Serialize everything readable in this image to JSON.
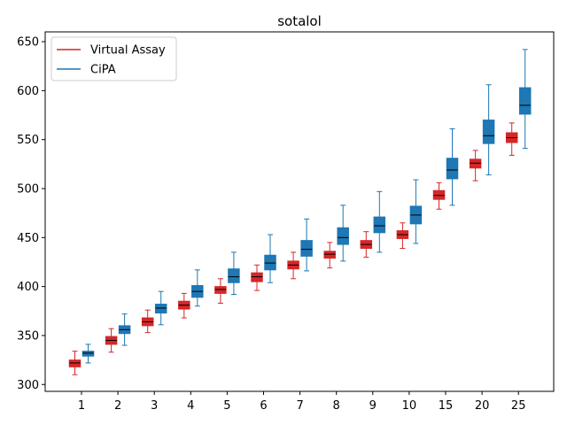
{
  "chart_data": {
    "type": "boxplot",
    "title": "sotalol",
    "xlabel": "",
    "ylabel": "",
    "categories": [
      "1",
      "2",
      "3",
      "4",
      "5",
      "6",
      "7",
      "8",
      "9",
      "10",
      "15",
      "20",
      "25"
    ],
    "ylim": [
      293,
      660
    ],
    "yticks": [
      300,
      350,
      400,
      450,
      500,
      550,
      600,
      650
    ],
    "grid": false,
    "legend_position": "top-left",
    "series": [
      {
        "name": "Virtual Assay",
        "color": "#d62728",
        "median_color": "#000000",
        "boxes": [
          {
            "whislo": 310,
            "q1": 318,
            "med": 322,
            "q3": 325,
            "whishi": 334
          },
          {
            "whislo": 333,
            "q1": 341,
            "med": 345,
            "q3": 349,
            "whishi": 357
          },
          {
            "whislo": 353,
            "q1": 360,
            "med": 364,
            "q3": 368,
            "whishi": 376
          },
          {
            "whislo": 368,
            "q1": 377,
            "med": 381,
            "q3": 385,
            "whishi": 393
          },
          {
            "whislo": 383,
            "q1": 393,
            "med": 397,
            "q3": 400,
            "whishi": 408
          },
          {
            "whislo": 396,
            "q1": 405,
            "med": 410,
            "q3": 414,
            "whishi": 422
          },
          {
            "whislo": 408,
            "q1": 418,
            "med": 422,
            "q3": 426,
            "whishi": 435
          },
          {
            "whislo": 419,
            "q1": 429,
            "med": 433,
            "q3": 436,
            "whishi": 445
          },
          {
            "whislo": 430,
            "q1": 439,
            "med": 443,
            "q3": 447,
            "whishi": 456
          },
          {
            "whislo": 439,
            "q1": 449,
            "med": 453,
            "q3": 457,
            "whishi": 465
          },
          {
            "whislo": 479,
            "q1": 489,
            "med": 493,
            "q3": 498,
            "whishi": 506
          },
          {
            "whislo": 508,
            "q1": 521,
            "med": 526,
            "q3": 530,
            "whishi": 539
          },
          {
            "whislo": 534,
            "q1": 547,
            "med": 552,
            "q3": 557,
            "whishi": 567
          }
        ]
      },
      {
        "name": "CiPA",
        "color": "#1f77b4",
        "median_color": "#000000",
        "boxes": [
          {
            "whislo": 322,
            "q1": 329,
            "med": 332,
            "q3": 334,
            "whishi": 341
          },
          {
            "whislo": 340,
            "q1": 352,
            "med": 356,
            "q3": 360,
            "whishi": 372
          },
          {
            "whislo": 361,
            "q1": 373,
            "med": 378,
            "q3": 382,
            "whishi": 395
          },
          {
            "whislo": 380,
            "q1": 389,
            "med": 395,
            "q3": 401,
            "whishi": 417
          },
          {
            "whislo": 392,
            "q1": 404,
            "med": 410,
            "q3": 418,
            "whishi": 435
          },
          {
            "whislo": 404,
            "q1": 417,
            "med": 424,
            "q3": 432,
            "whishi": 453
          },
          {
            "whislo": 416,
            "q1": 431,
            "med": 438,
            "q3": 447,
            "whishi": 469
          },
          {
            "whislo": 426,
            "q1": 443,
            "med": 450,
            "q3": 460,
            "whishi": 483
          },
          {
            "whislo": 435,
            "q1": 455,
            "med": 462,
            "q3": 471,
            "whishi": 497
          },
          {
            "whislo": 444,
            "q1": 464,
            "med": 473,
            "q3": 482,
            "whishi": 509
          },
          {
            "whislo": 483,
            "q1": 510,
            "med": 519,
            "q3": 531,
            "whishi": 561
          },
          {
            "whislo": 514,
            "q1": 546,
            "med": 554,
            "q3": 570,
            "whishi": 606
          },
          {
            "whislo": 541,
            "q1": 576,
            "med": 585,
            "q3": 603,
            "whishi": 642
          }
        ]
      }
    ]
  }
}
